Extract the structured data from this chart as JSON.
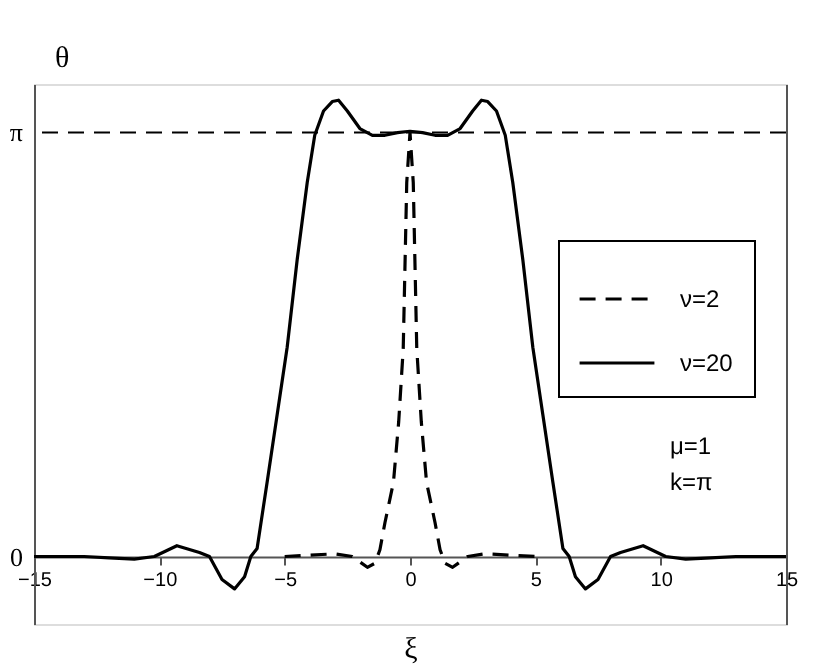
{
  "chart_data": {
    "type": "line",
    "xlabel": "ξ",
    "ylabel": "θ",
    "xlim": [
      -15,
      15
    ],
    "xticks": [
      -15,
      -10,
      -5,
      0,
      5,
      10,
      15
    ],
    "ylim": [
      -0.5,
      3.5
    ],
    "yticks": [
      0,
      {
        "value": 3.1416,
        "label": "π"
      }
    ],
    "grid": false,
    "legend": "right",
    "series": [
      {
        "name": "ν=2",
        "color": "#000000",
        "line_style": "dashed",
        "x": [
          -5,
          -4,
          -3,
          -2.3,
          -1.7,
          -1.4,
          -1.2,
          -1.0,
          -0.66,
          -0.45,
          -0.27,
          -0.13,
          0,
          0.13,
          0.27,
          0.45,
          0.66,
          1.0,
          1.2,
          1.4,
          1.7,
          2.3,
          3,
          4,
          5
        ],
        "values": [
          0,
          0.01,
          0.02,
          0,
          -0.08,
          -0.05,
          0.05,
          0.25,
          0.55,
          1.0,
          1.54,
          2.77,
          3.14,
          2.77,
          1.54,
          1.0,
          0.55,
          0.25,
          0.05,
          -0.05,
          -0.08,
          0,
          0.02,
          0.01,
          0
        ]
      },
      {
        "name": "ν=20",
        "color": "#000000",
        "line_style": "solid",
        "x": [
          -15,
          -13,
          -12,
          -11,
          -10.2,
          -9.3,
          -8.4,
          -8.0,
          -7.5,
          -7.0,
          -6.6,
          -6.35,
          -6.1,
          -5.7,
          -5.3,
          -4.9,
          -4.5,
          -4.1,
          -3.8,
          -3.45,
          -3.1,
          -2.85,
          -2.5,
          -2.0,
          -1.5,
          -1.0,
          -0.5,
          0,
          0.5,
          1.0,
          1.5,
          2.0,
          2.5,
          2.85,
          3.1,
          3.45,
          3.8,
          4.1,
          4.5,
          4.9,
          5.3,
          5.7,
          6.1,
          6.35,
          6.6,
          7.0,
          7.5,
          8.0,
          8.4,
          9.3,
          10.2,
          11,
          12,
          13,
          15
        ],
        "values": [
          0,
          0,
          -0.01,
          -0.02,
          0,
          0.08,
          0.03,
          0,
          -0.17,
          -0.24,
          -0.15,
          0,
          0.06,
          0.55,
          1.05,
          1.55,
          2.2,
          2.77,
          3.12,
          3.3,
          3.37,
          3.38,
          3.3,
          3.17,
          3.12,
          3.12,
          3.14,
          3.15,
          3.14,
          3.12,
          3.12,
          3.17,
          3.3,
          3.38,
          3.37,
          3.3,
          3.12,
          2.77,
          2.2,
          1.55,
          1.05,
          0.55,
          0.06,
          0,
          -0.15,
          -0.24,
          -0.17,
          0,
          0.03,
          0.08,
          0,
          -0.02,
          -0.01,
          0,
          0
        ]
      }
    ],
    "ref_lines": [
      {
        "axis": "y",
        "value": 3.1416,
        "line_style": "dashed",
        "color": "#000000"
      }
    ],
    "annotations": [
      "μ=1",
      "k=π"
    ]
  }
}
